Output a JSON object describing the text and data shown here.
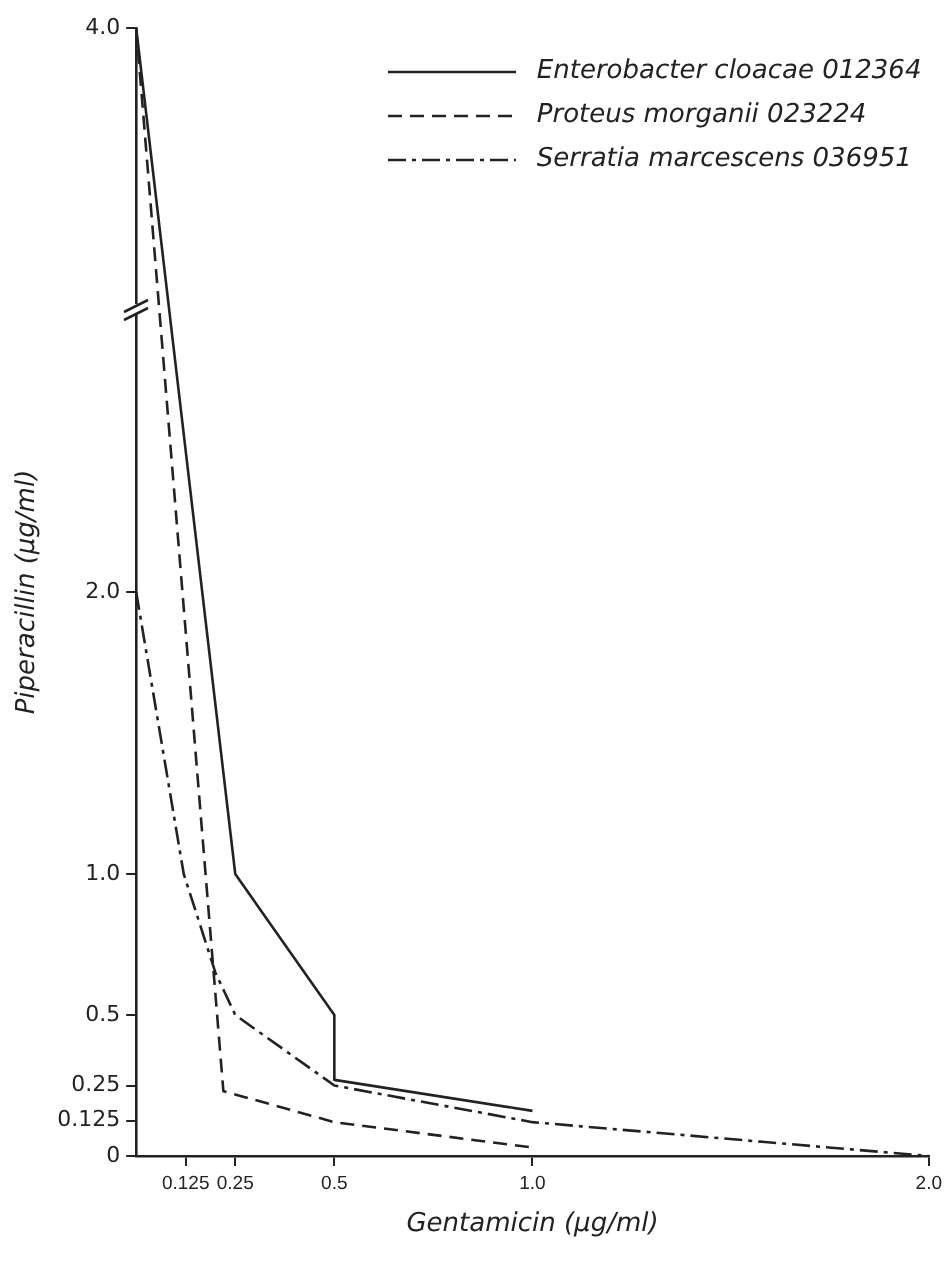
{
  "chart_data": {
    "type": "line",
    "xlabel": "Gentamicin (μg/ml)",
    "ylabel": "Piperacillin (μg/ml)",
    "xlim": [
      0,
      2.0
    ],
    "xticks": [
      {
        "value": 0.125,
        "label": "0.125"
      },
      {
        "value": 0.25,
        "label": "0.25"
      },
      {
        "value": 0.5,
        "label": "0.5"
      },
      {
        "value": 1.0,
        "label": "1.0"
      },
      {
        "value": 2.0,
        "label": "2.0"
      }
    ],
    "ylim": [
      0,
      4.0
    ],
    "yticks": [
      0,
      {
        "value": 0.125,
        "label": "0.125"
      },
      {
        "value": 0.25,
        "label": "0.25"
      },
      {
        "value": 0.5,
        "label": "0.5"
      },
      {
        "value": 1.0,
        "label": "1.0"
      },
      {
        "value": 2.0,
        "label": "2.0"
      },
      {
        "value": 4.0,
        "label": "4.0"
      }
    ],
    "series": [
      {
        "name": "Enterobacter cloacae 012364",
        "color": "#222222",
        "line_style": "solid",
        "x": [
          0,
          0.25,
          0.5,
          0.5,
          1.0
        ],
        "values": [
          4.0,
          1.0,
          0.5,
          0.27,
          0.16
        ]
      },
      {
        "name": "Proteus morganii 023224",
        "color": "#222222",
        "line_style": "dashed",
        "x": [
          0,
          0.22,
          0.5,
          1.0
        ],
        "values": [
          4.0,
          0.23,
          0.12,
          0.03
        ]
      },
      {
        "name": "Serratia marcescens 036951",
        "color": "#222222",
        "line_style": "dashdot",
        "x": [
          0,
          0.12,
          0.2,
          0.25,
          0.5,
          1.0,
          2.0
        ],
        "values": [
          2.0,
          1.0,
          0.65,
          0.5,
          0.25,
          0.12,
          0
        ]
      }
    ],
    "marker": "none",
    "grid": false,
    "legend": "top right"
  }
}
